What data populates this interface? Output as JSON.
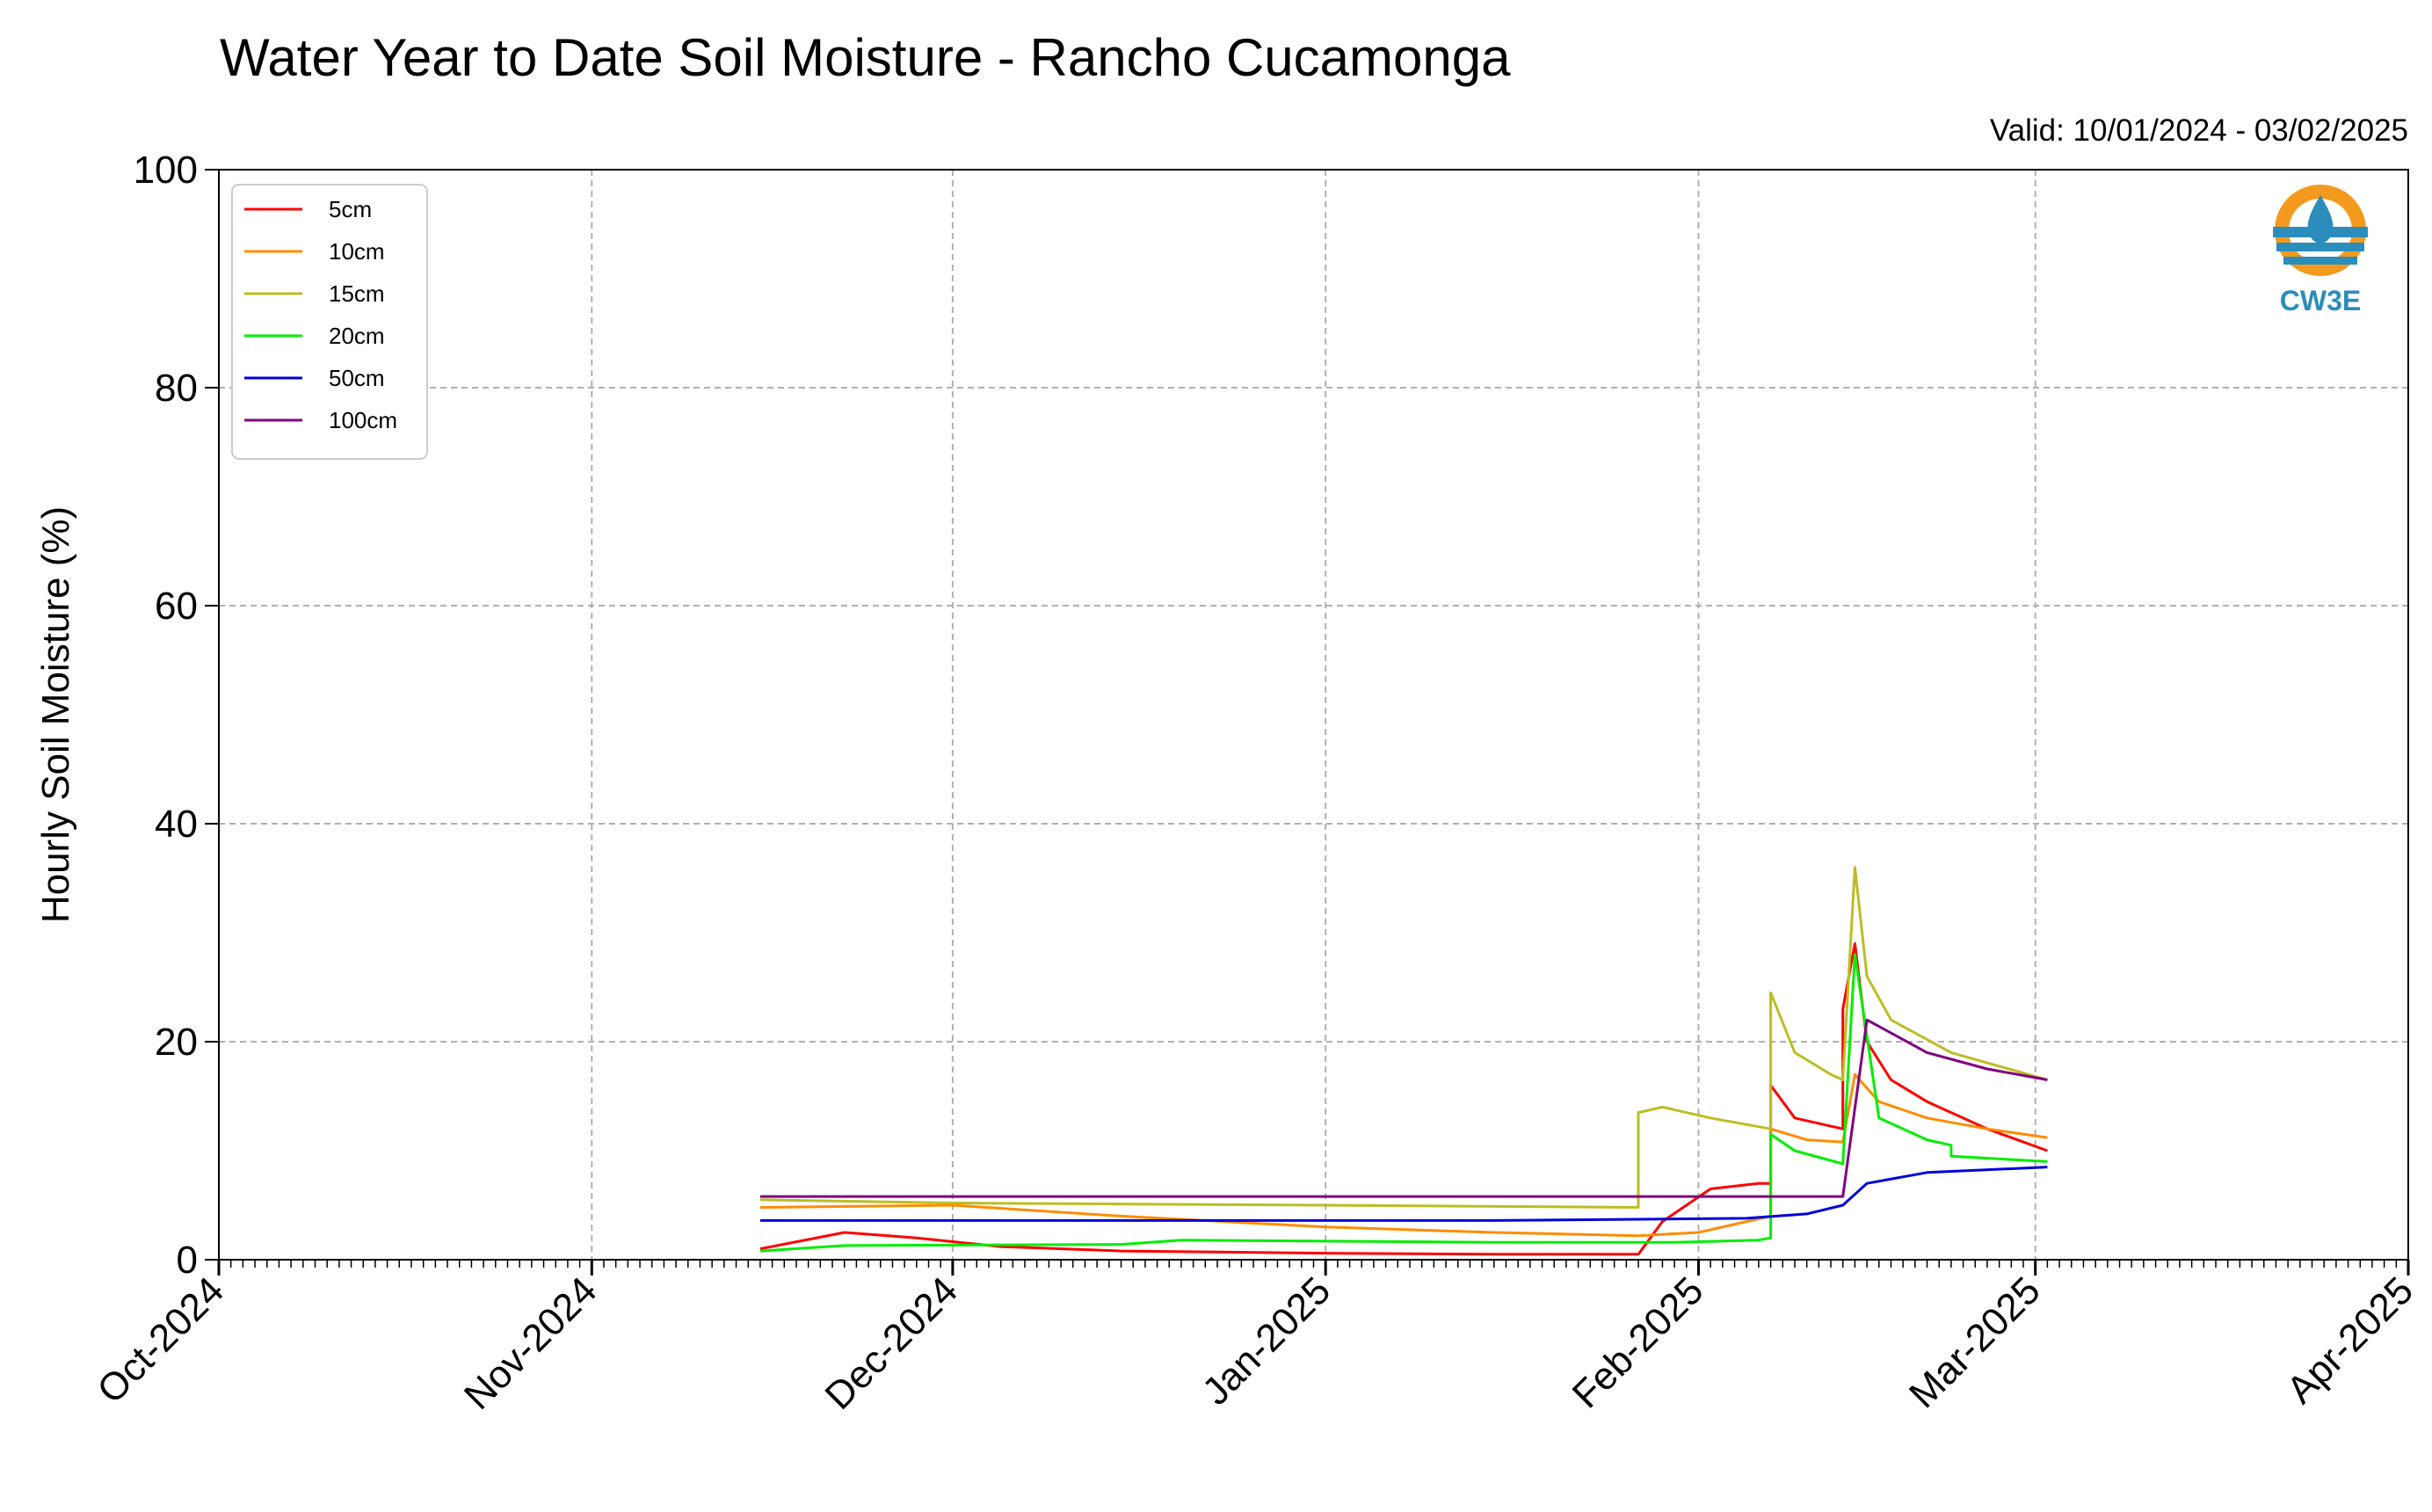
{
  "chart_data": {
    "type": "line",
    "title": "Water Year to Date Soil Moisture - Rancho Cucamonga",
    "valid_text": "Valid: 10/01/2024 - 03/02/2025",
    "xlabel": "",
    "ylabel": "Hourly Soil Moisture (%)",
    "ylim": [
      0,
      100
    ],
    "yticks": [
      0,
      20,
      40,
      60,
      80,
      100
    ],
    "xlim": [
      "2024-10-01",
      "2025-04-01"
    ],
    "xticks": [
      {
        "date": "2024-10-01",
        "label": "Oct-2024"
      },
      {
        "date": "2024-11-01",
        "label": "Nov-2024"
      },
      {
        "date": "2024-12-01",
        "label": "Dec-2024"
      },
      {
        "date": "2025-01-01",
        "label": "Jan-2025"
      },
      {
        "date": "2025-02-01",
        "label": "Feb-2025"
      },
      {
        "date": "2025-03-01",
        "label": "Mar-2025"
      },
      {
        "date": "2025-04-01",
        "label": "Apr-2025"
      }
    ],
    "grid": true,
    "legend_position": "upper-left",
    "series": [
      {
        "name": "5cm",
        "color": "#ff0000",
        "points": [
          [
            "2024-11-15",
            1.0
          ],
          [
            "2024-11-22",
            2.5
          ],
          [
            "2024-11-28",
            2.0
          ],
          [
            "2024-12-05",
            1.2
          ],
          [
            "2024-12-15",
            0.8
          ],
          [
            "2025-01-01",
            0.6
          ],
          [
            "2025-01-15",
            0.5
          ],
          [
            "2025-01-27",
            0.5
          ],
          [
            "2025-01-29",
            3.5
          ],
          [
            "2025-02-02",
            6.5
          ],
          [
            "2025-02-06",
            7.0
          ],
          [
            "2025-02-07",
            7.0
          ],
          [
            "2025-02-07",
            16.0
          ],
          [
            "2025-02-09",
            13.0
          ],
          [
            "2025-02-13",
            12.0
          ],
          [
            "2025-02-13",
            23.0
          ],
          [
            "2025-02-14",
            29.0
          ],
          [
            "2025-02-15",
            20.0
          ],
          [
            "2025-02-17",
            16.5
          ],
          [
            "2025-02-20",
            14.5
          ],
          [
            "2025-02-25",
            12.0
          ],
          [
            "2025-03-02",
            10.0
          ]
        ]
      },
      {
        "name": "10cm",
        "color": "#ff8c00",
        "points": [
          [
            "2024-11-15",
            4.8
          ],
          [
            "2024-12-01",
            5.0
          ],
          [
            "2024-12-15",
            4.0
          ],
          [
            "2025-01-01",
            3.0
          ],
          [
            "2025-01-15",
            2.5
          ],
          [
            "2025-01-27",
            2.2
          ],
          [
            "2025-02-01",
            2.5
          ],
          [
            "2025-02-05",
            3.5
          ],
          [
            "2025-02-07",
            4.0
          ],
          [
            "2025-02-07",
            12.0
          ],
          [
            "2025-02-10",
            11.0
          ],
          [
            "2025-02-13",
            10.8
          ],
          [
            "2025-02-14",
            17.0
          ],
          [
            "2025-02-16",
            14.5
          ],
          [
            "2025-02-20",
            13.0
          ],
          [
            "2025-02-25",
            12.0
          ],
          [
            "2025-03-02",
            11.2
          ]
        ]
      },
      {
        "name": "15cm",
        "color": "#bcbd22",
        "points": [
          [
            "2024-11-15",
            5.5
          ],
          [
            "2024-12-01",
            5.2
          ],
          [
            "2025-01-01",
            5.0
          ],
          [
            "2025-01-27",
            4.8
          ],
          [
            "2025-01-27",
            13.5
          ],
          [
            "2025-01-29",
            14.0
          ],
          [
            "2025-02-02",
            13.0
          ],
          [
            "2025-02-07",
            12.0
          ],
          [
            "2025-02-07",
            24.5
          ],
          [
            "2025-02-09",
            19.0
          ],
          [
            "2025-02-12",
            17.0
          ],
          [
            "2025-02-13",
            16.5
          ],
          [
            "2025-02-14",
            36.0
          ],
          [
            "2025-02-15",
            26.0
          ],
          [
            "2025-02-17",
            22.0
          ],
          [
            "2025-02-22",
            19.0
          ],
          [
            "2025-03-02",
            16.5
          ]
        ]
      },
      {
        "name": "20cm",
        "color": "#00ee00",
        "points": [
          [
            "2024-11-15",
            0.8
          ],
          [
            "2024-11-22",
            1.3
          ],
          [
            "2024-12-15",
            1.4
          ],
          [
            "2024-12-20",
            1.8
          ],
          [
            "2025-01-15",
            1.6
          ],
          [
            "2025-01-30",
            1.6
          ],
          [
            "2025-02-06",
            1.8
          ],
          [
            "2025-02-07",
            2.0
          ],
          [
            "2025-02-07",
            11.5
          ],
          [
            "2025-02-09",
            10.0
          ],
          [
            "2025-02-13",
            8.8
          ],
          [
            "2025-02-14",
            28.0
          ],
          [
            "2025-02-16",
            13.0
          ],
          [
            "2025-02-20",
            11.0
          ],
          [
            "2025-02-22",
            10.5
          ],
          [
            "2025-02-22",
            9.5
          ],
          [
            "2025-03-02",
            9.0
          ]
        ]
      },
      {
        "name": "50cm",
        "color": "#0000dd",
        "points": [
          [
            "2024-11-15",
            3.6
          ],
          [
            "2025-01-15",
            3.6
          ],
          [
            "2025-02-05",
            3.8
          ],
          [
            "2025-02-10",
            4.2
          ],
          [
            "2025-02-13",
            5.0
          ],
          [
            "2025-02-15",
            7.0
          ],
          [
            "2025-02-20",
            8.0
          ],
          [
            "2025-03-02",
            8.5
          ]
        ]
      },
      {
        "name": "100cm",
        "color": "#800080",
        "points": [
          [
            "2024-11-15",
            5.8
          ],
          [
            "2025-02-13",
            5.8
          ],
          [
            "2025-02-15",
            22.0
          ],
          [
            "2025-02-20",
            19.0
          ],
          [
            "2025-02-25",
            17.5
          ],
          [
            "2025-03-02",
            16.5
          ]
        ]
      }
    ]
  },
  "logo": {
    "text": "CW3E"
  }
}
